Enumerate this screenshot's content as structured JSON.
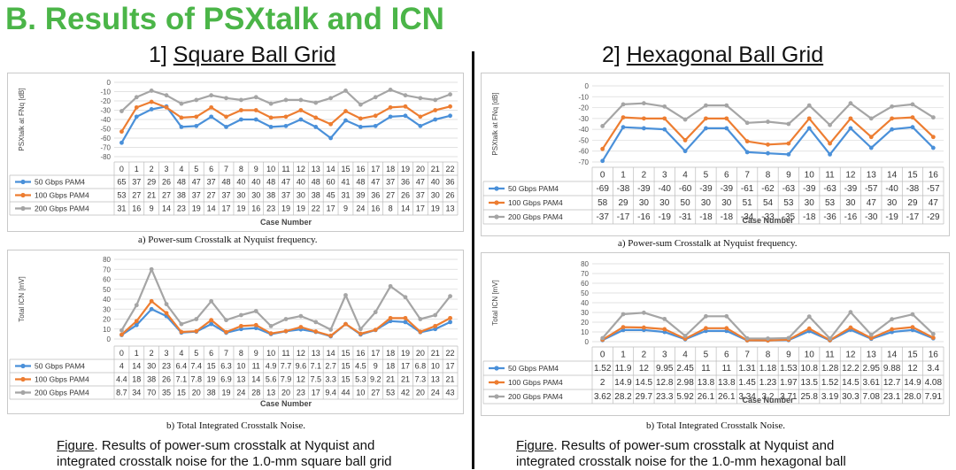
{
  "header": {
    "title": "B. Results of PSXtalk and ICN",
    "left_prefix": "1] ",
    "left_name": "Square Ball Grid",
    "right_prefix": "2] ",
    "right_name": "Hexagonal Ball Grid"
  },
  "captions": {
    "sq_a": "a) Power-sum Crosstalk at Nyquist frequency.",
    "sq_b": "b) Total Integrated Crosstalk Noise.",
    "hx_a": "a) Power-sum Crosstalk at Nyquist frequency.",
    "hx_b": "b) Total Integrated Crosstalk Noise.",
    "fig_left_label": "Figure",
    "fig_left_line1": ". Results of power-sum crosstalk at Nyquist and",
    "fig_left_line2": "integrated crosstalk noise for the 1.0-mm square ball grid",
    "fig_right_label": "Figure",
    "fig_right_line1": ". Results of power-sum crosstalk at Nyquist and",
    "fig_right_line2": "integrated crosstalk noise for the 1.0-mm hexagonal ball"
  },
  "colors": {
    "s50": "#4a90d9",
    "s100": "#ed7d31",
    "s200": "#a5a5a5"
  },
  "chart_data": [
    {
      "id": "sq_psx",
      "type": "line",
      "xlabel": "Case Number",
      "ylabel": "PSXtalk at FNq [dB]",
      "ylim": [
        -80,
        0
      ],
      "yticks": [
        0,
        -10,
        -20,
        -30,
        -40,
        -50,
        -60,
        -70,
        -80
      ],
      "categories": [
        "0",
        "1",
        "2",
        "3",
        "4",
        "5",
        "6",
        "7",
        "8",
        "9",
        "10",
        "11",
        "12",
        "13",
        "14",
        "15",
        "16",
        "17",
        "18",
        "19",
        "20",
        "21",
        "22"
      ],
      "series": [
        {
          "name": "50 Gbps PAM4",
          "values": [
            -65,
            -37,
            -29,
            -26,
            -48,
            -47,
            -37,
            -48,
            -40,
            -40,
            -48,
            -47,
            -40,
            -48,
            -60,
            -41,
            -48,
            -47,
            -37,
            -36,
            -47,
            -40,
            -36
          ],
          "labels": [
            "65",
            "37",
            "29",
            "26",
            "48",
            "47",
            "37",
            "48",
            "40",
            "40",
            "48",
            "47",
            "40",
            "48",
            "60",
            "41",
            "48",
            "47",
            "37",
            "36",
            "47",
            "40",
            "36"
          ]
        },
        {
          "name": "100 Gbps PAM4",
          "values": [
            -53,
            -27,
            -21,
            -27,
            -38,
            -37,
            -27,
            -37,
            -30,
            -30,
            -38,
            -37,
            -30,
            -38,
            -45,
            -31,
            -39,
            -36,
            -27,
            -26,
            -37,
            -30,
            -26
          ],
          "labels": [
            "53",
            "27",
            "21",
            "27",
            "38",
            "37",
            "27",
            "37",
            "30",
            "30",
            "38",
            "37",
            "30",
            "38",
            "45",
            "31",
            "39",
            "36",
            "27",
            "26",
            "37",
            "30",
            "26"
          ]
        },
        {
          "name": "200 Gbps PAM4",
          "values": [
            -31,
            -16,
            -9,
            -14,
            -23,
            -19,
            -14,
            -17,
            -19,
            -16,
            -23,
            -19,
            -19,
            -22,
            -17,
            -9,
            -24,
            -16,
            -8,
            -14,
            -17,
            -19,
            -13
          ],
          "labels": [
            "31",
            "16",
            "9",
            "14",
            "23",
            "19",
            "14",
            "17",
            "19",
            "16",
            "23",
            "19",
            "19",
            "22",
            "17",
            "9",
            "24",
            "16",
            "8",
            "14",
            "17",
            "19",
            "13"
          ]
        }
      ]
    },
    {
      "id": "sq_icn",
      "type": "line",
      "xlabel": "Case Number",
      "ylabel": "Total ICN [mV]",
      "ylim": [
        0,
        80
      ],
      "yticks": [
        80,
        70,
        60,
        50,
        40,
        30,
        20,
        10,
        0
      ],
      "categories": [
        "0",
        "1",
        "2",
        "3",
        "4",
        "5",
        "6",
        "7",
        "8",
        "9",
        "10",
        "11",
        "12",
        "13",
        "14",
        "15",
        "16",
        "17",
        "18",
        "19",
        "20",
        "21",
        "22"
      ],
      "series": [
        {
          "name": "50 Gbps PAM4",
          "values": [
            4,
            14,
            30,
            23,
            6.4,
            7.4,
            15,
            6.3,
            10,
            11,
            4.9,
            7.7,
            9.6,
            7.1,
            2.7,
            15,
            4.5,
            9,
            18,
            17,
            6.8,
            10,
            17
          ],
          "labels": [
            "4",
            "14",
            "30",
            "23",
            "6.4",
            "7.4",
            "15",
            "6.3",
            "10",
            "11",
            "4.9",
            "7.7",
            "9.6",
            "7.1",
            "2.7",
            "15",
            "4.5",
            "9",
            "18",
            "17",
            "6.8",
            "10",
            "17"
          ]
        },
        {
          "name": "100 Gbps PAM4",
          "values": [
            4.4,
            18,
            38,
            26,
            7.1,
            7.8,
            19,
            6.9,
            13,
            14,
            5.6,
            7.9,
            12,
            7.5,
            3.3,
            15,
            5.3,
            9.2,
            21,
            21,
            7.3,
            13,
            21
          ],
          "labels": [
            "4.4",
            "18",
            "38",
            "26",
            "7.1",
            "7.8",
            "19",
            "6.9",
            "13",
            "14",
            "5.6",
            "7.9",
            "12",
            "7.5",
            "3.3",
            "15",
            "5.3",
            "9.2",
            "21",
            "21",
            "7.3",
            "13",
            "21"
          ]
        },
        {
          "name": "200 Gbps PAM4",
          "values": [
            8.7,
            34,
            70,
            35,
            15,
            20,
            38,
            19,
            24,
            28,
            13,
            20,
            23,
            17,
            9.4,
            44,
            10,
            27,
            53,
            42,
            20,
            24,
            43
          ],
          "labels": [
            "8.7",
            "34",
            "70",
            "35",
            "15",
            "20",
            "38",
            "19",
            "24",
            "28",
            "13",
            "20",
            "23",
            "17",
            "9.4",
            "44",
            "10",
            "27",
            "53",
            "42",
            "20",
            "24",
            "43"
          ]
        }
      ]
    },
    {
      "id": "hx_psx",
      "type": "line",
      "xlabel": "Case Number",
      "ylabel": "PSXtalk at FNq [dB]",
      "ylim": [
        -70,
        0
      ],
      "yticks": [
        0,
        -10,
        -20,
        -30,
        -40,
        -50,
        -60,
        -70
      ],
      "categories": [
        "0",
        "1",
        "2",
        "3",
        "4",
        "5",
        "6",
        "7",
        "8",
        "9",
        "10",
        "11",
        "12",
        "13",
        "14",
        "15",
        "16"
      ],
      "series": [
        {
          "name": "50 Gbps PAM4",
          "values": [
            -69,
            -38,
            -39,
            -40,
            -60,
            -39,
            -39,
            -61,
            -62,
            -63,
            -39,
            -63,
            -39,
            -57,
            -40,
            -38,
            -57
          ],
          "labels": [
            "-69",
            "-38",
            "-39",
            "-40",
            "-60",
            "-39",
            "-39",
            "-61",
            "-62",
            "-63",
            "-39",
            "-63",
            "-39",
            "-57",
            "-40",
            "-38",
            "-57"
          ]
        },
        {
          "name": "100 Gbps PAM4",
          "values": [
            -58,
            -29,
            -30,
            -30,
            -50,
            -30,
            -30,
            -51,
            -54,
            -53,
            -30,
            -53,
            -30,
            -47,
            -30,
            -29,
            -47
          ],
          "labels": [
            "58",
            "29",
            "30",
            "30",
            "50",
            "30",
            "30",
            "51",
            "54",
            "53",
            "30",
            "53",
            "30",
            "47",
            "30",
            "29",
            "47"
          ]
        },
        {
          "name": "200 Gbps PAM4",
          "values": [
            -37,
            -17,
            -16,
            -19,
            -31,
            -18,
            -18,
            -34,
            -33,
            -35,
            -18,
            -36,
            -16,
            -30,
            -19,
            -17,
            -29
          ],
          "labels": [
            "-37",
            "-17",
            "-16",
            "-19",
            "-31",
            "-18",
            "-18",
            "-34",
            "-33",
            "-35",
            "-18",
            "-36",
            "-16",
            "-30",
            "-19",
            "-17",
            "-29"
          ]
        }
      ]
    },
    {
      "id": "hx_icn",
      "type": "line",
      "xlabel": "Case Number",
      "ylabel": "Total ICN [mV]",
      "ylim": [
        0,
        80
      ],
      "yticks": [
        80,
        70,
        60,
        50,
        40,
        30,
        20,
        10,
        0
      ],
      "categories": [
        "0",
        "1",
        "2",
        "3",
        "4",
        "5",
        "6",
        "7",
        "8",
        "9",
        "10",
        "11",
        "12",
        "13",
        "14",
        "15",
        "16"
      ],
      "series": [
        {
          "name": "50 Gbps PAM4",
          "values": [
            1.52,
            11.9,
            12,
            9.95,
            2.45,
            11,
            11,
            1.31,
            1.18,
            1.53,
            10.8,
            1.28,
            12.2,
            2.95,
            9.88,
            12,
            3.4
          ],
          "labels": [
            "1.52",
            "11.9",
            "12",
            "9.95",
            "2.45",
            "11",
            "11",
            "1.31",
            "1.18",
            "1.53",
            "10.8",
            "1.28",
            "12.2",
            "2.95",
            "9.88",
            "12",
            "3.4"
          ]
        },
        {
          "name": "100 Gbps PAM4",
          "values": [
            2,
            14.9,
            14.5,
            12.8,
            2.98,
            13.8,
            13.8,
            1.45,
            1.23,
            1.97,
            13.5,
            1.52,
            14.5,
            3.61,
            12.7,
            14.9,
            4.08
          ],
          "labels": [
            "2",
            "14.9",
            "14.5",
            "12.8",
            "2.98",
            "13.8",
            "13.8",
            "1.45",
            "1.23",
            "1.97",
            "13.5",
            "1.52",
            "14.5",
            "3.61",
            "12.7",
            "14.9",
            "4.08"
          ]
        },
        {
          "name": "200 Gbps PAM4",
          "values": [
            3.62,
            28.2,
            29.7,
            23.3,
            5.92,
            26.1,
            26.1,
            3.34,
            3.2,
            3.71,
            25.8,
            3.19,
            30.3,
            7.08,
            23.1,
            28,
            7.91
          ],
          "labels": [
            "3.62",
            "28.2",
            "29.7",
            "23.3",
            "5.92",
            "26.1",
            "26.1",
            "3.34",
            "3.2",
            "3.71",
            "25.8",
            "3.19",
            "30.3",
            "7.08",
            "23.1",
            "28.0",
            "7.91"
          ]
        }
      ]
    }
  ]
}
